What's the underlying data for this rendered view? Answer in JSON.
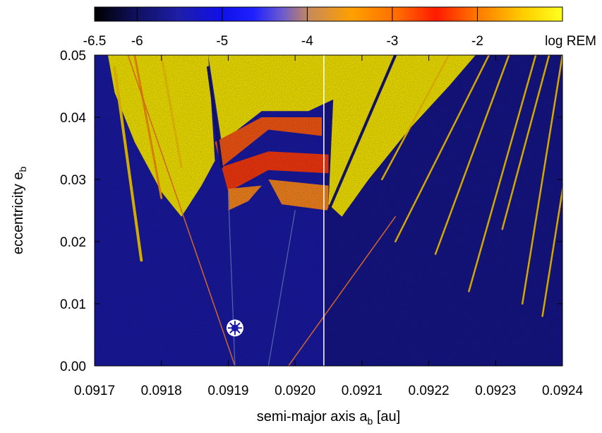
{
  "chart_data": {
    "type": "heatmap",
    "title": "",
    "xlabel": "semi-major axis a",
    "xlabel_sub": "b",
    "xlabel_unit": " [au]",
    "ylabel": "eccentricity e",
    "ylabel_sub": "b",
    "xlim": [
      0.0917,
      0.0924
    ],
    "ylim": [
      0.0,
      0.05
    ],
    "x_ticks": [
      "0.0917",
      "0.0918",
      "0.0919",
      "0.0920",
      "0.0921",
      "0.0922",
      "0.0923",
      "0.0924"
    ],
    "y_ticks": [
      "0.00",
      "0.01",
      "0.02",
      "0.03",
      "0.04",
      "0.05"
    ],
    "colorbar": {
      "label": "log REM",
      "range": [
        -6.5,
        -1.0
      ],
      "tick_labels": [
        "-6.5",
        "-6",
        "-5",
        "-4",
        "-3",
        "-2"
      ],
      "tick_values": [
        -6.5,
        -6,
        -5,
        -4,
        -3,
        -2
      ],
      "palette": [
        "#000000",
        "#1a1a8c",
        "#0000ff",
        "#d08a50",
        "#ffa000",
        "#ff0000",
        "#ffff00"
      ]
    },
    "annotations": [
      {
        "type": "vertical-line",
        "x": 0.092043,
        "color": "#ffffff"
      },
      {
        "type": "marker",
        "symbol": "sun-symbol",
        "x": 0.09191,
        "y": 0.0061
      }
    ],
    "colors": {
      "stable": "#1a1aa8",
      "chaotic": "#ffee00",
      "intermediate": "#ff5a14"
    },
    "grid": false
  }
}
